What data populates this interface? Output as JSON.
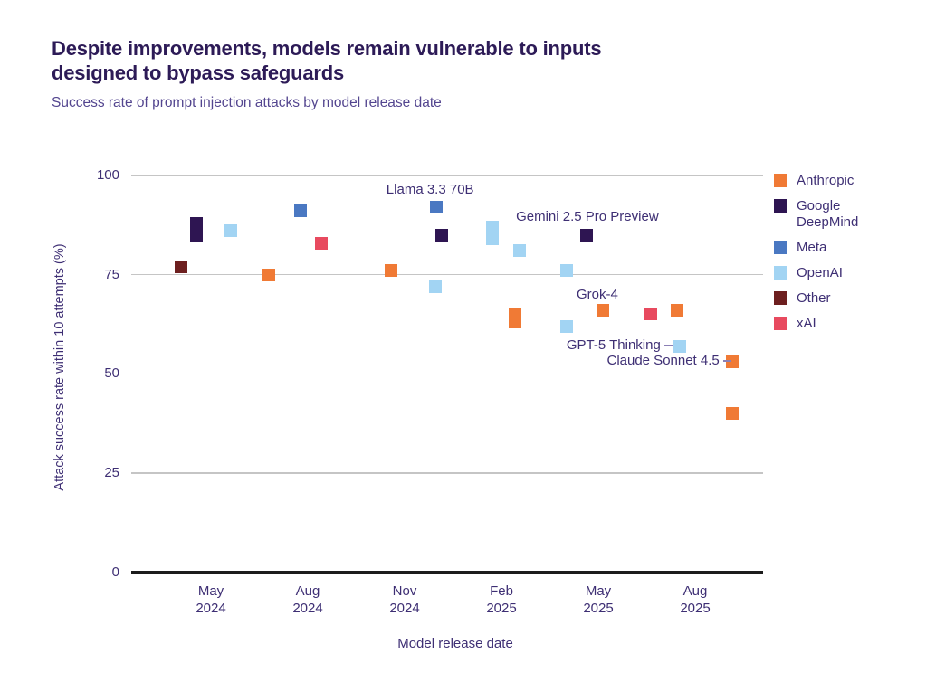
{
  "title": {
    "line1": "Despite improvements, models remain vulnerable to inputs",
    "line2": "designed to bypass safeguards"
  },
  "subtitle": "Success rate of prompt injection attacks by model release date",
  "colors": {
    "anthropic": "#f07a35",
    "google_deepmind": "#2e1552",
    "meta": "#4a78c2",
    "openai": "#a2d4f3",
    "other": "#6d1f1f",
    "xai": "#e84a5f",
    "title_text": "#2d1b57",
    "body_text": "#3e2f74",
    "gridline": "#c5c5c5",
    "axis_line": "#1c1c1c"
  },
  "chart_data": {
    "type": "scatter",
    "title": "Despite improvements, models remain vulnerable to inputs designed to bypass safeguards",
    "subtitle": "Success rate of prompt injection attacks by model release date",
    "xlabel": "Model release date",
    "ylabel": "Attack success rate within 10 attempts (%)",
    "ylim": [
      0,
      100
    ],
    "y_ticks": [
      0,
      25,
      50,
      75,
      100
    ],
    "x_ticks": [
      {
        "months": 0,
        "line1": "May",
        "line2": "2024"
      },
      {
        "months": 3,
        "line1": "Aug",
        "line2": "2024"
      },
      {
        "months": 6,
        "line1": "Nov",
        "line2": "2024"
      },
      {
        "months": 9,
        "line1": "Feb",
        "line2": "2025"
      },
      {
        "months": 12,
        "line1": "May",
        "line2": "2025"
      },
      {
        "months": 15,
        "line1": "Aug",
        "line2": "2025"
      }
    ],
    "legend_position": "right",
    "grid": "horizontal",
    "legend": [
      {
        "label": "Anthropic",
        "color": "#f07a35"
      },
      {
        "label": "Google DeepMind",
        "color": "#2e1552"
      },
      {
        "label": "Meta",
        "color": "#4a78c2"
      },
      {
        "label": "OpenAI",
        "color": "#a2d4f3"
      },
      {
        "label": "Other",
        "color": "#6d1f1f"
      },
      {
        "label": "xAI",
        "color": "#e84a5f"
      }
    ],
    "points_note": "x = months after the May 2024 tick (model release date), y = attack success rate %",
    "points": [
      {
        "company": "Other",
        "x": -0.93,
        "y": 77
      },
      {
        "company": "Google DeepMind",
        "x": -0.45,
        "y": 88
      },
      {
        "company": "Google DeepMind",
        "x": -0.45,
        "y": 85
      },
      {
        "company": "OpenAI",
        "x": 0.62,
        "y": 86
      },
      {
        "company": "Anthropic",
        "x": 1.79,
        "y": 75
      },
      {
        "company": "Meta",
        "x": 2.78,
        "y": 91
      },
      {
        "company": "xAI",
        "x": 3.42,
        "y": 83
      },
      {
        "company": "Anthropic",
        "x": 5.58,
        "y": 76
      },
      {
        "company": "Meta",
        "x": 6.97,
        "y": 92,
        "label": "Llama 3.3 70B"
      },
      {
        "company": "OpenAI",
        "x": 6.96,
        "y": 72
      },
      {
        "company": "Google DeepMind",
        "x": 7.15,
        "y": 85
      },
      {
        "company": "OpenAI",
        "x": 8.72,
        "y": 87
      },
      {
        "company": "OpenAI",
        "x": 8.72,
        "y": 84
      },
      {
        "company": "OpenAI",
        "x": 9.56,
        "y": 81
      },
      {
        "company": "Anthropic",
        "x": 9.42,
        "y": 65
      },
      {
        "company": "Anthropic",
        "x": 9.42,
        "y": 63
      },
      {
        "company": "OpenAI",
        "x": 11.02,
        "y": 76
      },
      {
        "company": "OpenAI",
        "x": 11.02,
        "y": 62
      },
      {
        "company": "Google DeepMind",
        "x": 11.64,
        "y": 85,
        "label": "Gemini 2.5 Pro Preview"
      },
      {
        "company": "Anthropic",
        "x": 12.14,
        "y": 66
      },
      {
        "company": "xAI",
        "x": 13.63,
        "y": 65,
        "label": "Grok-4"
      },
      {
        "company": "Anthropic",
        "x": 14.44,
        "y": 66
      },
      {
        "company": "OpenAI",
        "x": 14.51,
        "y": 57,
        "label": "GPT-5 Thinking"
      },
      {
        "company": "Anthropic",
        "x": 16.15,
        "y": 53,
        "label": "Claude Sonnet 4.5"
      },
      {
        "company": "Anthropic",
        "x": 16.15,
        "y": 40
      }
    ],
    "annotations": [
      {
        "text": "Llama 3.3 70B",
        "x": 6.79,
        "y": 96.4,
        "align": "middle",
        "leader": false
      },
      {
        "text": "Gemini 2.5 Pro Preview",
        "x": 11.66,
        "y": 89.5,
        "align": "middle",
        "leader": false
      },
      {
        "text": "Grok-4",
        "x": 11.97,
        "y": 69.9,
        "align": "middle",
        "leader": false
      },
      {
        "text": "GPT-5 Thinking",
        "x": 13.93,
        "y": 57.1,
        "align": "end",
        "leader": true
      },
      {
        "text": "Claude Sonnet 4.5",
        "x": 15.75,
        "y": 53.2,
        "align": "end",
        "leader": true
      }
    ]
  }
}
